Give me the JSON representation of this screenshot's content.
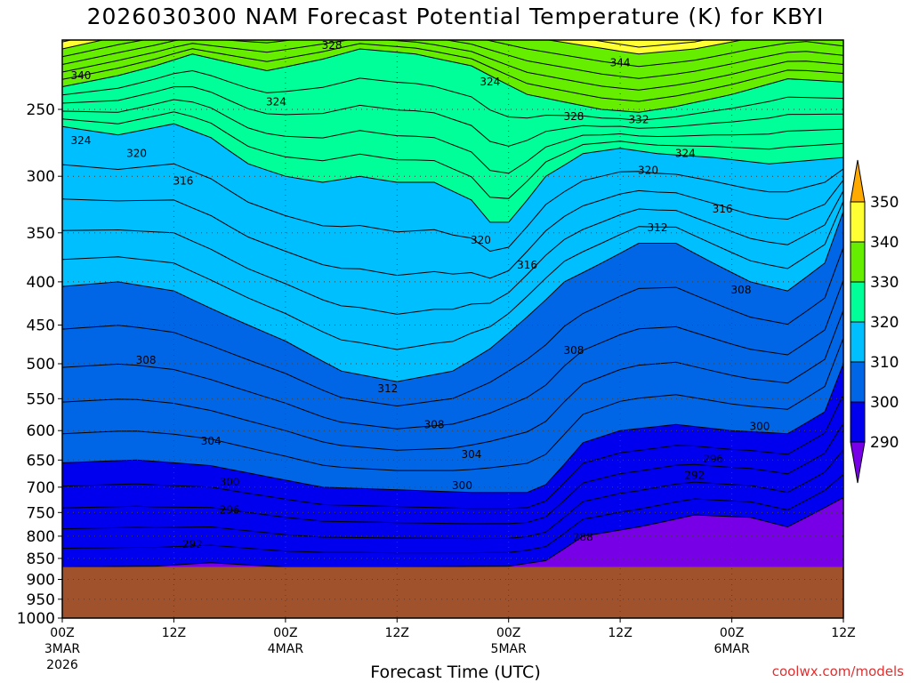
{
  "title": "2026030300 NAM Forecast Potential Temperature (K) for KBYI",
  "credit": "coolwx.com/models",
  "colors": {
    "band_300_310": "#0066e6",
    "band_310_320": "#00bfff",
    "band_320_330": "#00ff99",
    "band_330_340": "#66ee00",
    "band_340_350": "#ffff33",
    "band_gt_350": "#ffaa00",
    "band_290_300": "#0000ee",
    "band_lt_290": "#7700e6",
    "terrain": "#a0522d",
    "contour": "#000000"
  },
  "chart_data": {
    "type": "contour",
    "variable": "Potential Temperature (K)",
    "xlabel": "Forecast Time (UTC)",
    "ylabel": "",
    "y_axis_scale": "log-pressure, inverted",
    "ylim": [
      1000,
      200
    ],
    "x_ticks": [
      {
        "hour": 0,
        "label": "00Z",
        "sub1": "3MAR",
        "sub2": "2026"
      },
      {
        "hour": 12,
        "label": "12Z",
        "sub1": "",
        "sub2": ""
      },
      {
        "hour": 24,
        "label": "00Z",
        "sub1": "4MAR",
        "sub2": ""
      },
      {
        "hour": 36,
        "label": "12Z",
        "sub1": "",
        "sub2": ""
      },
      {
        "hour": 48,
        "label": "00Z",
        "sub1": "5MAR",
        "sub2": ""
      },
      {
        "hour": 60,
        "label": "12Z",
        "sub1": "",
        "sub2": ""
      },
      {
        "hour": 72,
        "label": "00Z",
        "sub1": "6MAR",
        "sub2": ""
      },
      {
        "hour": 84,
        "label": "12Z",
        "sub1": "",
        "sub2": ""
      }
    ],
    "y_ticks": [
      250,
      300,
      350,
      400,
      450,
      500,
      550,
      600,
      650,
      700,
      750,
      800,
      850,
      900,
      950,
      1000
    ],
    "surface_pressure_hpa": 870,
    "colorbar_levels": [
      290,
      300,
      310,
      320,
      330,
      340,
      350
    ],
    "contour_interval_k": 4,
    "contour_labels": [
      {
        "value": "340",
        "hour": 2,
        "p": 228
      },
      {
        "value": "328",
        "hour": 29,
        "p": 210
      },
      {
        "value": "324",
        "hour": 23,
        "p": 245
      },
      {
        "value": "324",
        "hour": 46,
        "p": 232
      },
      {
        "value": "344",
        "hour": 60,
        "p": 220
      },
      {
        "value": "328",
        "hour": 55,
        "p": 255
      },
      {
        "value": "332",
        "hour": 62,
        "p": 257
      },
      {
        "value": "324",
        "hour": 2,
        "p": 272
      },
      {
        "value": "320",
        "hour": 8,
        "p": 282
      },
      {
        "value": "324",
        "hour": 67,
        "p": 282
      },
      {
        "value": "320",
        "hour": 63,
        "p": 295
      },
      {
        "value": "316",
        "hour": 13,
        "p": 304
      },
      {
        "value": "316",
        "hour": 71,
        "p": 328
      },
      {
        "value": "312",
        "hour": 64,
        "p": 345
      },
      {
        "value": "320",
        "hour": 45,
        "p": 357
      },
      {
        "value": "316",
        "hour": 50,
        "p": 382
      },
      {
        "value": "308",
        "hour": 73,
        "p": 409
      },
      {
        "value": "308",
        "hour": 55,
        "p": 482
      },
      {
        "value": "308",
        "hour": 9,
        "p": 495
      },
      {
        "value": "312",
        "hour": 35,
        "p": 535
      },
      {
        "value": "308",
        "hour": 40,
        "p": 590
      },
      {
        "value": "300",
        "hour": 75,
        "p": 593
      },
      {
        "value": "304",
        "hour": 16,
        "p": 617
      },
      {
        "value": "304",
        "hour": 44,
        "p": 640
      },
      {
        "value": "296",
        "hour": 70,
        "p": 648
      },
      {
        "value": "292",
        "hour": 68,
        "p": 678
      },
      {
        "value": "300",
        "hour": 18,
        "p": 690
      },
      {
        "value": "300",
        "hour": 43,
        "p": 697
      },
      {
        "value": "296",
        "hour": 18,
        "p": 745
      },
      {
        "value": "288",
        "hour": 56,
        "p": 802
      },
      {
        "value": "292",
        "hour": 14,
        "p": 818
      }
    ]
  },
  "axis": {
    "y_labels": [
      "250",
      "300",
      "350",
      "400",
      "450",
      "500",
      "550",
      "600",
      "650",
      "700",
      "750",
      "800",
      "850",
      "900",
      "950",
      "1000"
    ],
    "x_title": "Forecast Time (UTC)"
  },
  "colorbar": {
    "labels": [
      "290",
      "300",
      "310",
      "320",
      "330",
      "340",
      "350"
    ]
  }
}
